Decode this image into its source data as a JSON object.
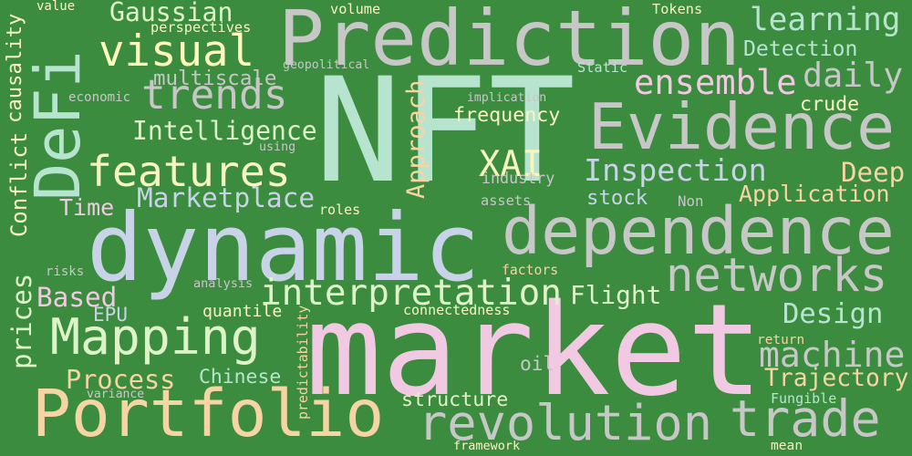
{
  "background_color": "#3b8c3f",
  "words": [
    {
      "text": "NFT",
      "color": "#b7e4cf"
    },
    {
      "text": "market",
      "color": "#f2c9e2"
    },
    {
      "text": "dynamic",
      "color": "#c9d3e8"
    },
    {
      "text": "Prediction",
      "color": "#c7c7c7"
    },
    {
      "text": "Portfolio",
      "color": "#f6d4a4"
    },
    {
      "text": "DeFi",
      "color": "#b7e4cf"
    },
    {
      "text": "Evidence",
      "color": "#c7c7c7"
    },
    {
      "text": "dependence",
      "color": "#c7c7c7"
    },
    {
      "text": "revolution",
      "color": "#c7c7c7"
    },
    {
      "text": "features",
      "color": "#f7f5c0"
    },
    {
      "text": "trends",
      "color": "#c7c7c7"
    },
    {
      "text": "networks",
      "color": "#c7c7c7"
    },
    {
      "text": "Mapping",
      "color": "#dff3c8"
    },
    {
      "text": "trade",
      "color": "#c7c7c7"
    },
    {
      "text": "visual",
      "color": "#fffbbd"
    },
    {
      "text": "interpretation",
      "color": "#dff3c8"
    },
    {
      "text": "Inspection",
      "color": "#c9d3e8"
    },
    {
      "text": "machine",
      "color": "#c7c7c7"
    },
    {
      "text": "learning",
      "color": "#b7e4cf"
    },
    {
      "text": "daily",
      "color": "#c7c7c7"
    },
    {
      "text": "ensemble",
      "color": "#f2c9e2"
    },
    {
      "text": "Gaussian",
      "color": "#dff3c8"
    },
    {
      "text": "Intelligence",
      "color": "#dff3c8"
    },
    {
      "text": "XAI",
      "color": "#f7f5c0"
    },
    {
      "text": "Marketplace",
      "color": "#c9d3e8"
    },
    {
      "text": "Trajectory",
      "color": "#f6d4a4"
    },
    {
      "text": "Design",
      "color": "#b7e4cf"
    },
    {
      "text": "Deep",
      "color": "#f6d4a4"
    },
    {
      "text": "Application",
      "color": "#f6d4a4"
    },
    {
      "text": "Flight",
      "color": "#dff3c8"
    },
    {
      "text": "Process",
      "color": "#f6d4a4"
    },
    {
      "text": "Approach",
      "color": "#f6d4a4"
    },
    {
      "text": "prices",
      "color": "#dff3c8"
    },
    {
      "text": "Conflict",
      "color": "#f7f5c0"
    },
    {
      "text": "causality",
      "color": "#f7f5c0"
    },
    {
      "text": "Based",
      "color": "#f2c9e2"
    },
    {
      "text": "Time",
      "color": "#f2c9e2"
    },
    {
      "text": "multiscale",
      "color": "#c7c7c7"
    },
    {
      "text": "industry",
      "color": "#c7c7c7"
    },
    {
      "text": "frequency",
      "color": "#f7f5c0"
    },
    {
      "text": "Detection",
      "color": "#b7e4cf"
    },
    {
      "text": "stock",
      "color": "#c9d3e8"
    },
    {
      "text": "crude",
      "color": "#f7f5c0"
    },
    {
      "text": "structure",
      "color": "#dff3c8"
    },
    {
      "text": "Chinese",
      "color": "#b7e4cf"
    },
    {
      "text": "quantile",
      "color": "#f7f5c0"
    },
    {
      "text": "EPU",
      "color": "#c9d3e8"
    },
    {
      "text": "oil",
      "color": "#c7c7c7"
    },
    {
      "text": "Tokens",
      "color": "#f7f5c0"
    },
    {
      "text": "volume",
      "color": "#f7f5c0"
    },
    {
      "text": "value",
      "color": "#f7f5c0"
    },
    {
      "text": "perspectives",
      "color": "#f7f5c0"
    },
    {
      "text": "geopolitical",
      "color": "#c7c7c7"
    },
    {
      "text": "Static",
      "color": "#b7e4cf"
    },
    {
      "text": "economic",
      "color": "#c7c7c7"
    },
    {
      "text": "using",
      "color": "#c7c7c7"
    },
    {
      "text": "implication",
      "color": "#c7c7c7"
    },
    {
      "text": "assets",
      "color": "#c7c7c7"
    },
    {
      "text": "Non",
      "color": "#c7c7c7"
    },
    {
      "text": "roles",
      "color": "#f7f5c0"
    },
    {
      "text": "risks",
      "color": "#c7c7c7"
    },
    {
      "text": "analysis",
      "color": "#c7c7c7"
    },
    {
      "text": "factors",
      "color": "#f6d4a4"
    },
    {
      "text": "connectedness",
      "color": "#f7f5c0"
    },
    {
      "text": "predictability",
      "color": "#f6d4a4"
    },
    {
      "text": "return",
      "color": "#f6d4a4"
    },
    {
      "text": "variance",
      "color": "#c7c7c7"
    },
    {
      "text": "Fungible",
      "color": "#b7e4cf"
    },
    {
      "text": "framework",
      "color": "#f7f5c0"
    },
    {
      "text": "mean",
      "color": "#f7f5c0"
    }
  ]
}
